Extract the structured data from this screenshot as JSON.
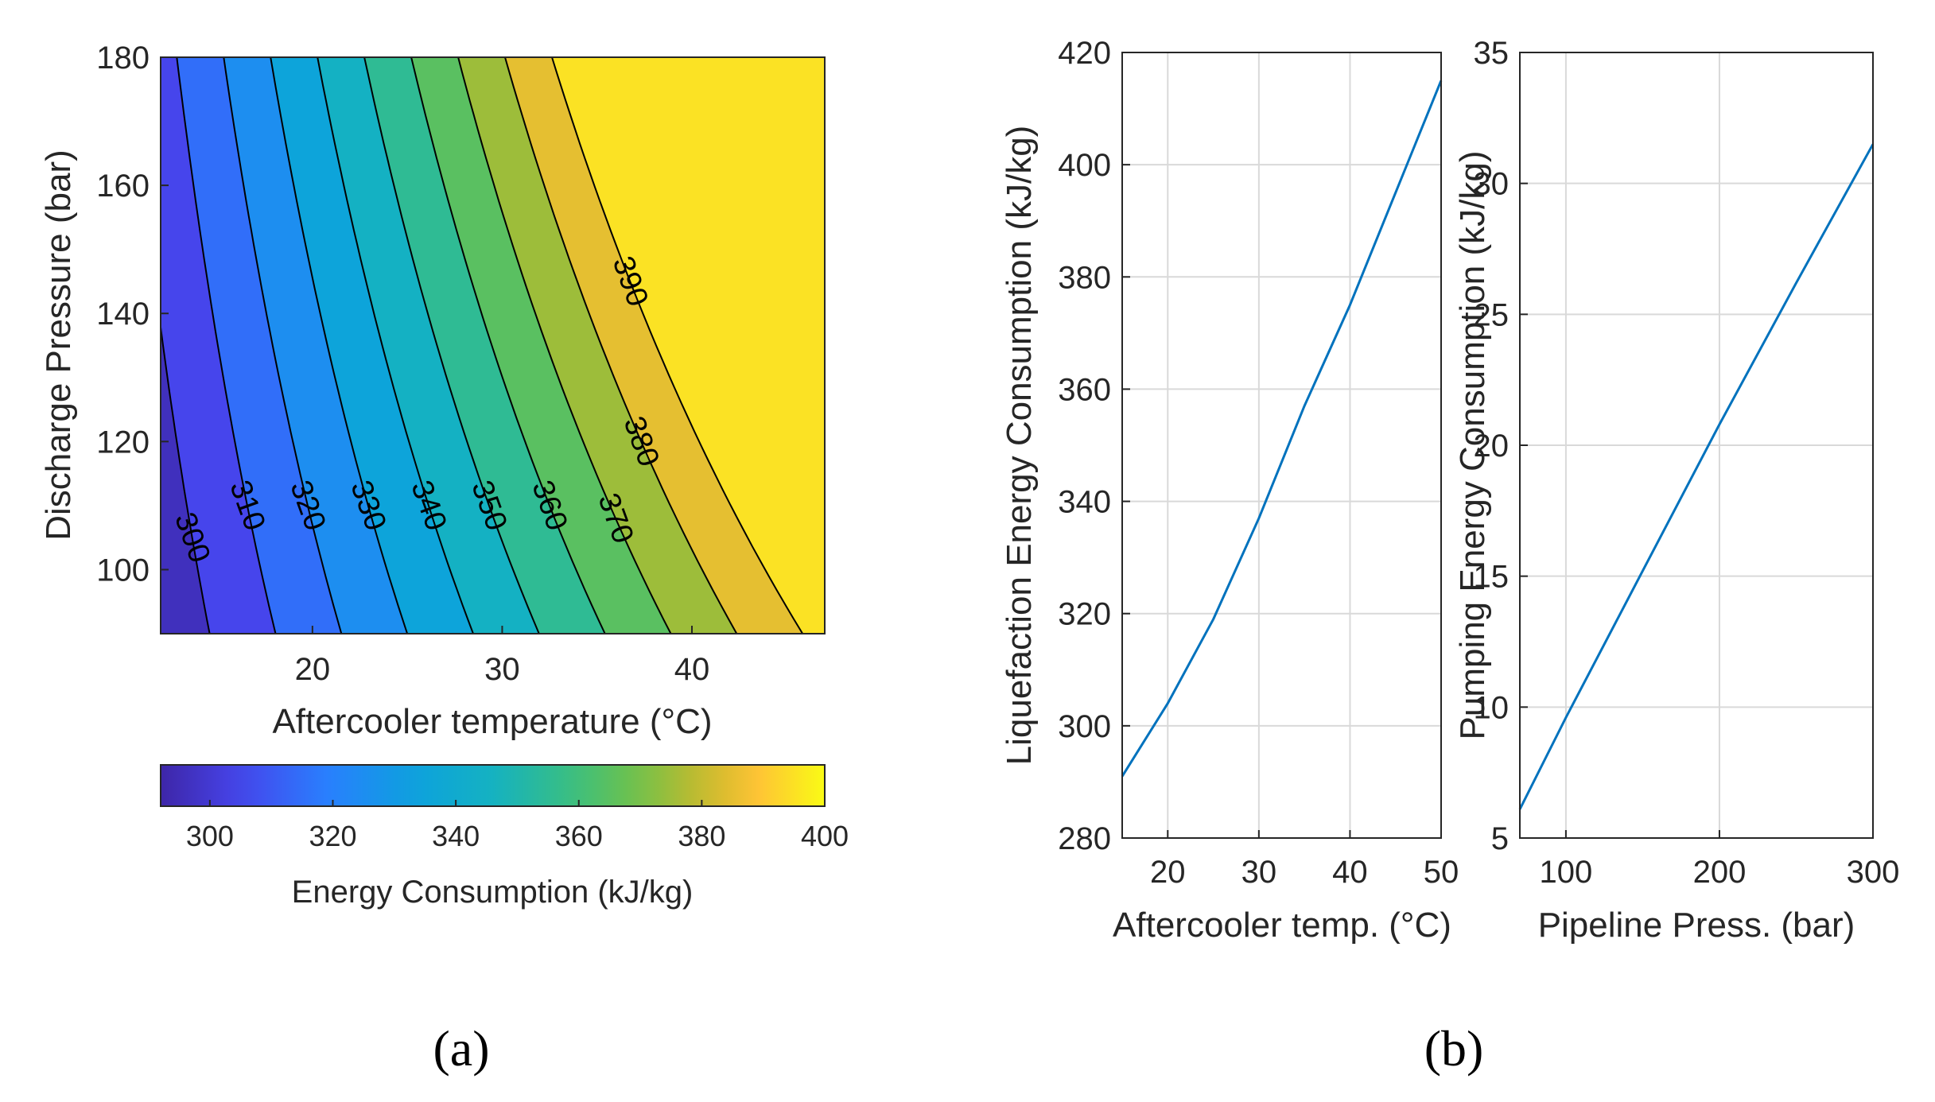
{
  "panels": {
    "a_label": "(a)",
    "b_label": "(b)"
  },
  "chart_data": [
    {
      "type": "heatmap",
      "subtype": "filled-contour",
      "xlabel": "Aftercooler temperature (°C)",
      "ylabel": "Discharge Pressure (bar)",
      "xlim": [
        12,
        47
      ],
      "ylim": [
        90,
        180
      ],
      "xticks": [
        20,
        30,
        40
      ],
      "yticks": [
        100,
        120,
        140,
        160,
        180
      ],
      "contour_levels": [
        300,
        310,
        320,
        330,
        340,
        350,
        360,
        370,
        380,
        390
      ],
      "contour_labels": [
        "300",
        "310",
        "320",
        "330",
        "340",
        "350",
        "360",
        "370",
        "380",
        "390"
      ],
      "model": {
        "T_coef": 2.88,
        "P_coef": 0.18,
        "P_ref": 90,
        "base": 258
      },
      "colorbar": {
        "label": "Energy Consumption (kJ/kg)",
        "range": [
          292,
          400
        ],
        "ticks": [
          300,
          320,
          340,
          360,
          380,
          400
        ],
        "colormap": "parula"
      }
    },
    {
      "type": "line",
      "xlabel": "Aftercooler temp. (°C)",
      "ylabel": "Liquefaction Energy Consumption (kJ/kg)",
      "xlim": [
        15,
        50
      ],
      "ylim": [
        280,
        420
      ],
      "xticks": [
        20,
        30,
        40,
        50
      ],
      "yticks": [
        280,
        300,
        320,
        340,
        360,
        380,
        400,
        420
      ],
      "grid": true,
      "color": "#0072BD",
      "series": [
        {
          "x": [
            15,
            20,
            25,
            30,
            35,
            40,
            45,
            50
          ],
          "y": [
            291,
            304,
            319,
            337,
            357,
            375,
            395,
            415
          ]
        }
      ]
    },
    {
      "type": "line",
      "xlabel": "Pipeline Press. (bar)",
      "ylabel": "Pumping Energy Consumption (kJ/kg)",
      "xlim": [
        70,
        300
      ],
      "ylim": [
        5,
        35
      ],
      "xticks": [
        100,
        200,
        300
      ],
      "yticks": [
        5,
        10,
        15,
        20,
        25,
        30,
        35
      ],
      "grid": true,
      "color": "#0072BD",
      "series": [
        {
          "x": [
            70,
            100,
            150,
            200,
            250,
            300
          ],
          "y": [
            6.1,
            9.6,
            15.2,
            20.8,
            26.2,
            31.5
          ]
        }
      ]
    }
  ]
}
